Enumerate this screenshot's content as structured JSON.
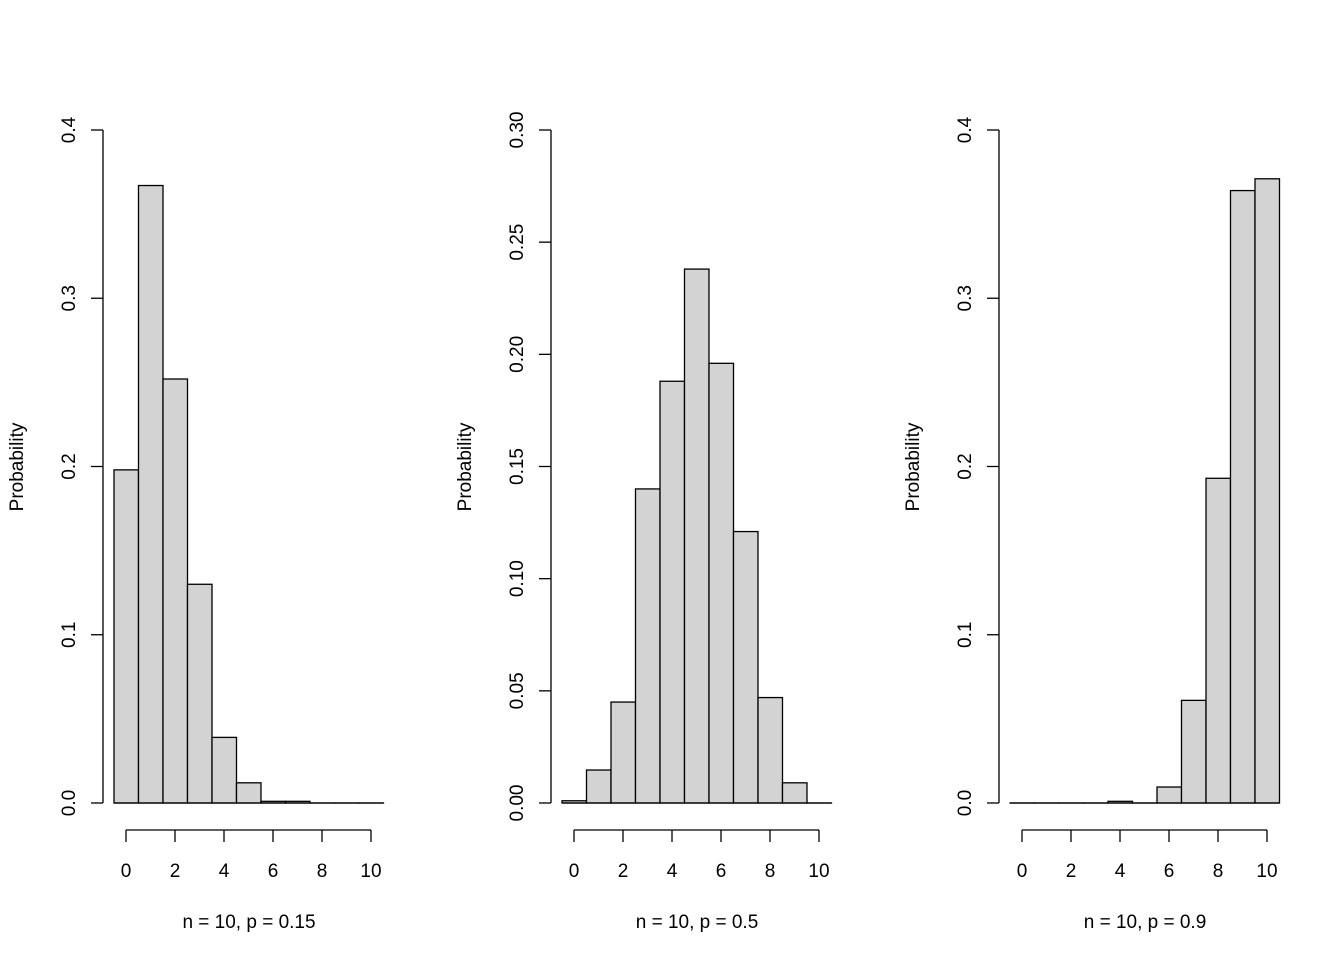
{
  "chart_data": [
    {
      "type": "bar",
      "title": "",
      "xlabel": "n = 10, p = 0.15",
      "ylabel": "Probability",
      "categories": [
        0,
        1,
        2,
        3,
        4,
        5,
        6,
        7,
        8,
        9,
        10
      ],
      "values": [
        0.198,
        0.367,
        0.252,
        0.13,
        0.039,
        0.012,
        0.001,
        0.001,
        0,
        0,
        0
      ],
      "ylim": [
        0,
        0.4
      ],
      "yticks": [
        "0.0",
        "0.1",
        "0.2",
        "0.3",
        "0.4"
      ],
      "ytick_values": [
        0,
        0.1,
        0.2,
        0.3,
        0.4
      ],
      "xticks": [
        "0",
        "2",
        "4",
        "6",
        "8",
        "10"
      ],
      "fill": "#d3d3d3"
    },
    {
      "type": "bar",
      "title": "",
      "xlabel": "n = 10, p = 0.5",
      "ylabel": "Probability",
      "categories": [
        0,
        1,
        2,
        3,
        4,
        5,
        6,
        7,
        8,
        9,
        10
      ],
      "values": [
        0.001,
        0.0147,
        0.045,
        0.14,
        0.188,
        0.238,
        0.196,
        0.121,
        0.047,
        0.009,
        0
      ],
      "ylim": [
        0,
        0.3
      ],
      "yticks": [
        "0.00",
        "0.05",
        "0.10",
        "0.15",
        "0.20",
        "0.25",
        "0.30"
      ],
      "ytick_values": [
        0,
        0.05,
        0.1,
        0.15,
        0.2,
        0.25,
        0.3
      ],
      "xticks": [
        "0",
        "2",
        "4",
        "6",
        "8",
        "10"
      ],
      "fill": "#d3d3d3"
    },
    {
      "type": "bar",
      "title": "",
      "xlabel": "n = 10, p = 0.9",
      "ylabel": "Probability",
      "categories": [
        0,
        1,
        2,
        3,
        4,
        5,
        6,
        7,
        8,
        9,
        10
      ],
      "values": [
        0,
        0,
        0,
        0,
        0.001,
        0,
        0.0095,
        0.061,
        0.193,
        0.364,
        0.371
      ],
      "ylim": [
        0,
        0.4
      ],
      "yticks": [
        "0.0",
        "0.1",
        "0.2",
        "0.3",
        "0.4"
      ],
      "ytick_values": [
        0,
        0.1,
        0.2,
        0.3,
        0.4
      ],
      "xticks": [
        "0",
        "2",
        "4",
        "6",
        "8",
        "10"
      ],
      "fill": "#d3d3d3"
    }
  ]
}
